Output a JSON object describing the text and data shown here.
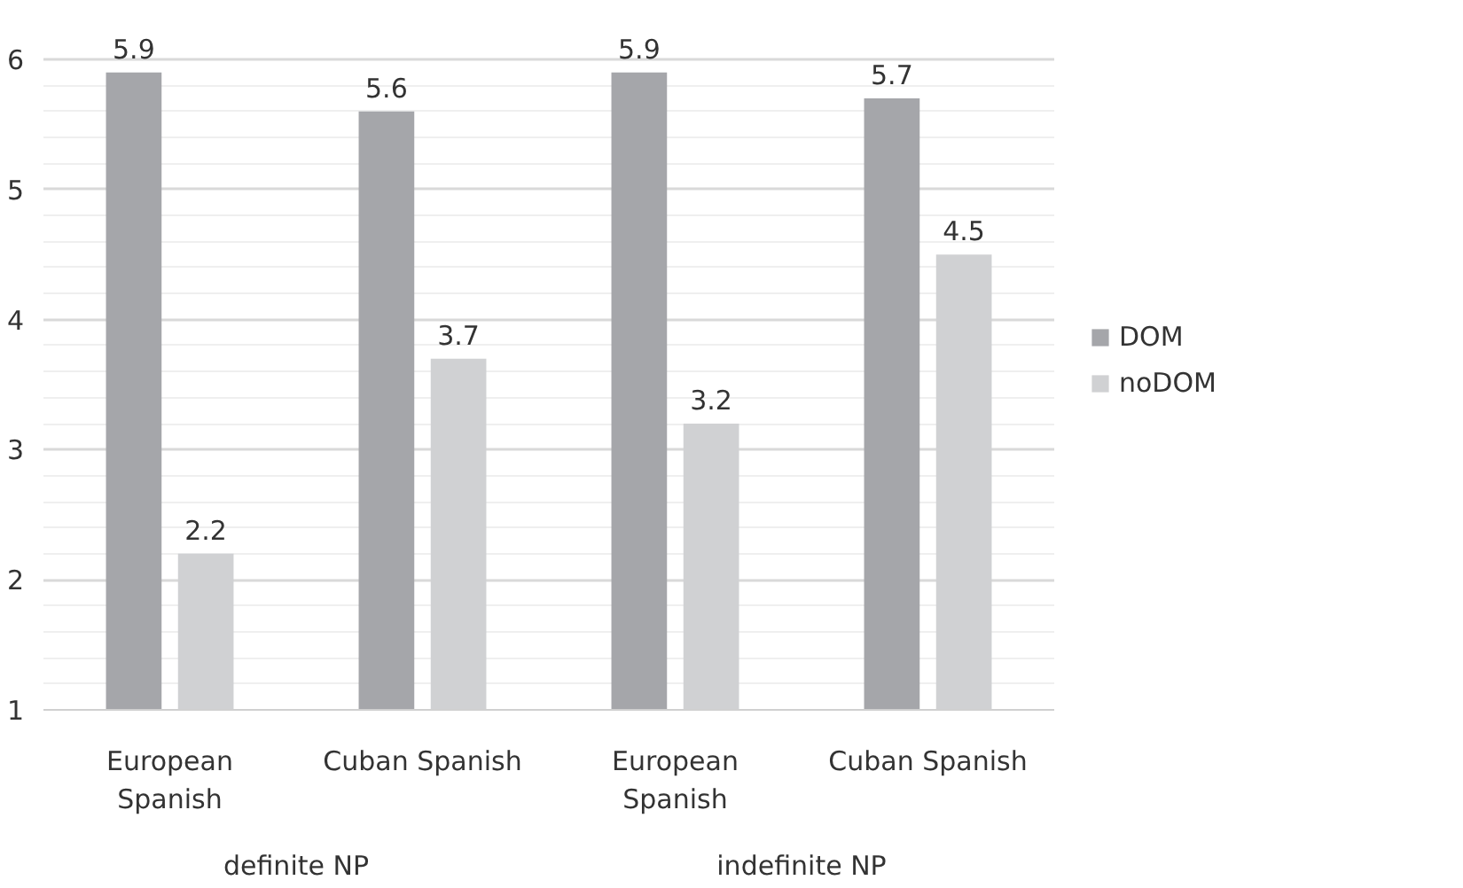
{
  "chart_data": {
    "type": "bar",
    "categories": [
      "European Spanish",
      "Cuban Spanish",
      "European Spanish",
      "Cuban Spanish"
    ],
    "series": [
      {
        "name": "DOM",
        "color": "#a5a6aa",
        "values": [
          5.9,
          5.6,
          5.9,
          5.7
        ]
      },
      {
        "name": "noDOM",
        "color": "#d0d1d3",
        "values": [
          2.2,
          3.7,
          3.2,
          4.5
        ]
      }
    ],
    "annotations": [
      "definite NP",
      "indefinite NP"
    ],
    "ylim": [
      1,
      6
    ],
    "yticks": [
      1,
      2,
      3,
      4,
      5,
      6
    ],
    "data_labels": true,
    "grid": "y",
    "legend": "right"
  }
}
